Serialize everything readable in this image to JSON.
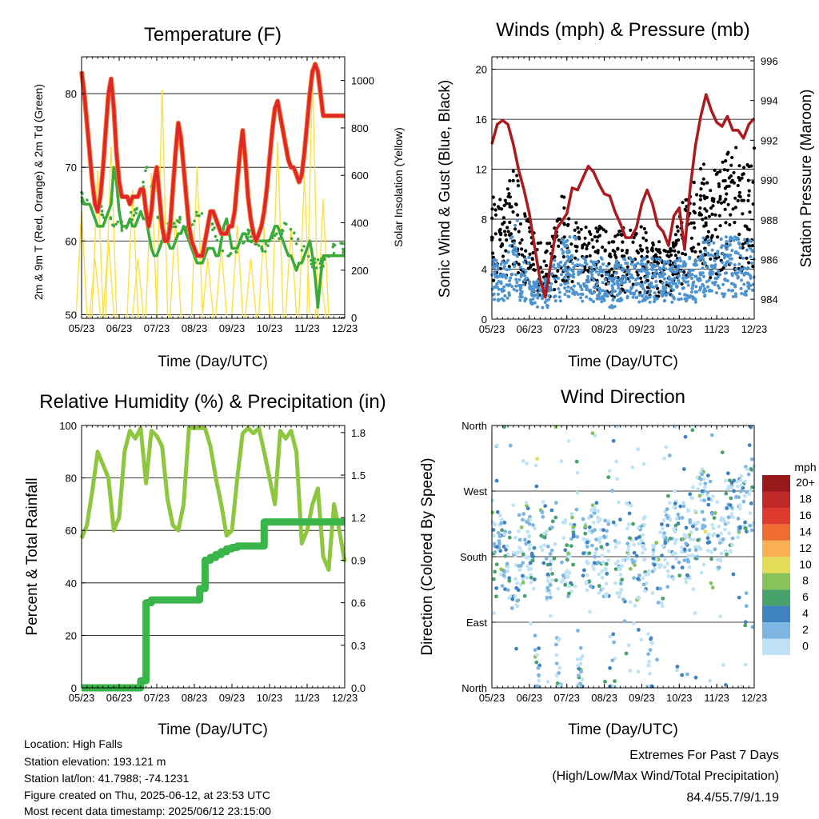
{
  "shared": {
    "xlabel": "Time (Day/UTC)",
    "xticks": [
      "05/23",
      "06/23",
      "07/23",
      "08/23",
      "09/23",
      "10/23",
      "11/23",
      "12/23"
    ]
  },
  "chart_data": [
    {
      "type": "line",
      "title": "Temperature (F)",
      "ylabel_left": "2m & 9m T (Red, Orange) & 2m Td (Green)",
      "ylabel_right": "Solar Insolation (Yellow)",
      "ylim_left": [
        49.5,
        85
      ],
      "yticks_left": [
        50,
        60,
        70,
        80
      ],
      "ylim_right": [
        -3,
        1100
      ],
      "yticks_right": [
        0,
        200,
        400,
        600,
        800,
        1000
      ],
      "x": [
        0,
        0.5,
        1,
        1.5,
        2,
        2.5,
        3,
        3.5,
        4,
        4.5,
        5,
        5.5,
        6,
        6.5,
        7,
        7.5,
        8,
        8.5,
        9,
        9.5,
        10,
        10.5,
        11,
        11.5,
        12,
        12.5,
        13,
        13.5,
        14,
        14.5,
        15,
        15.5,
        16,
        16.5,
        17,
        17.5,
        18,
        18.5,
        19,
        19.5,
        20,
        20.5,
        21,
        21.5,
        22,
        22.5,
        23,
        23.5,
        24,
        24.5,
        25,
        25.5,
        26,
        26.5,
        27,
        27.5,
        28,
        28.5,
        29,
        29.5,
        30,
        30.5,
        31,
        31.5,
        32,
        32.5,
        33,
        33.5,
        34,
        34.5,
        35,
        35.5,
        36,
        36.5,
        37,
        37.5,
        38,
        38.5,
        39,
        39.5,
        40,
        40.5,
        41,
        41.5,
        42,
        42.5,
        43,
        43.5,
        44,
        44.5,
        45,
        45.5,
        46,
        46.5,
        47,
        47.5,
        48,
        48.5,
        49
      ],
      "series": [
        {
          "color": "#e0262a",
          "values": [
            83,
            80,
            76,
            72,
            68,
            65,
            64,
            66,
            70,
            75,
            80,
            82,
            78,
            72,
            68,
            66,
            66,
            66,
            65,
            66,
            66,
            66,
            67,
            67,
            64,
            62,
            64,
            68,
            70,
            66,
            62,
            60,
            60,
            62,
            67,
            72,
            76,
            74,
            70,
            66,
            62,
            60,
            59,
            58,
            58,
            58,
            60,
            62,
            64,
            64,
            63,
            62,
            61,
            61,
            61,
            62,
            62,
            64,
            68,
            72,
            75,
            71,
            66,
            63,
            61,
            60,
            61,
            62,
            64,
            67,
            71,
            75,
            78,
            79,
            77,
            75,
            73,
            71,
            70,
            70,
            69,
            68,
            69,
            72,
            76,
            80,
            83,
            84,
            83,
            80,
            77,
            77,
            77,
            77,
            77,
            77,
            77,
            77,
            77
          ]
        },
        {
          "color": "#3aab3a",
          "values": [
            66,
            65,
            65,
            65,
            64,
            63,
            62,
            62,
            62,
            63,
            64,
            65,
            70,
            68,
            64,
            62,
            62,
            62,
            63,
            62,
            62,
            63,
            64,
            63,
            63,
            61,
            59,
            58,
            58,
            59,
            60,
            61,
            60,
            59,
            59,
            60,
            61,
            61,
            62,
            61,
            60,
            59,
            58,
            57,
            57,
            57,
            58,
            59,
            59,
            59,
            58,
            58,
            60,
            62,
            63,
            61,
            59,
            59,
            59,
            60,
            61,
            61,
            60,
            60,
            60,
            60,
            60,
            60,
            60,
            60,
            60,
            61,
            62,
            62,
            61,
            60,
            59,
            58,
            58,
            57,
            56,
            57,
            57,
            58,
            59,
            60,
            58,
            55,
            51,
            55,
            58,
            58,
            58,
            58,
            58,
            58,
            58,
            58,
            58
          ]
        },
        {
          "color": "#ffe042",
          "values": [
            450,
            0,
            0,
            0,
            0,
            250,
            620,
            0,
            0,
            0,
            330,
            720,
            0,
            0,
            0,
            0,
            0,
            0,
            0,
            540,
            0,
            250,
            0,
            0,
            0,
            0,
            610,
            0,
            0,
            0,
            960,
            0,
            0,
            0,
            0,
            420,
            0,
            0,
            0,
            0,
            0,
            0,
            0,
            640,
            0,
            0,
            0,
            250,
            0,
            0,
            0,
            0,
            300,
            0,
            0,
            0,
            0,
            0,
            390,
            0,
            0,
            0,
            0,
            250,
            0,
            0,
            0,
            0,
            380,
            0,
            0,
            0,
            0,
            740,
            0,
            0,
            0,
            0,
            380,
            0,
            0,
            0,
            0,
            600,
            0,
            0,
            1040,
            0,
            0,
            180,
            500,
            0,
            0,
            0,
            0,
            0,
            0,
            0,
            0
          ]
        }
      ]
    },
    {
      "type": "scatter",
      "title": "Winds (mph) & Pressure (mb)",
      "ylabel_left": "Sonic Wind & Gust (Blue, Black)",
      "ylabel_right": "Station Pressure (Maroon)",
      "ylim_left": [
        0,
        21
      ],
      "yticks_left": [
        0,
        4,
        8,
        12,
        16,
        20
      ],
      "ylim_right": [
        983,
        996.2
      ],
      "yticks_right": [
        984,
        986,
        988,
        990,
        992,
        994,
        996
      ],
      "pressure": {
        "color": "#aa1a1f",
        "x": [
          0,
          1,
          2,
          3,
          4,
          5,
          6,
          7,
          8,
          9,
          10,
          11,
          12,
          13,
          14,
          15,
          16,
          17,
          18,
          19,
          20,
          21,
          22,
          23,
          24,
          25,
          26,
          27,
          28,
          29,
          30,
          31,
          32,
          33,
          34,
          35,
          36,
          37,
          38,
          39,
          40,
          41,
          42,
          43,
          44,
          45,
          46,
          47,
          48,
          49
        ],
        "values": [
          991.8,
          992.8,
          993,
          992.8,
          991.8,
          990.5,
          989.5,
          988.3,
          986.6,
          985,
          984.1,
          985.8,
          987.5,
          987.9,
          988.3,
          989.6,
          989.5,
          990.1,
          990.7,
          990.4,
          989.8,
          989.3,
          989.2,
          988.4,
          987.8,
          987.1,
          987.1,
          987.6,
          988.8,
          989.5,
          988.8,
          987.7,
          987.4,
          986.7,
          988.2,
          988.6,
          986.5,
          989.5,
          991.7,
          993.2,
          994.3,
          993.5,
          992.9,
          992.7,
          993.2,
          992.5,
          992.5,
          992.1,
          992.8,
          993.1
        ]
      },
      "wind_level": [
        3,
        3,
        3,
        4,
        5,
        3,
        3,
        2,
        2,
        2,
        2,
        3,
        3,
        4,
        4,
        4,
        3,
        3,
        3,
        3,
        3,
        3,
        2,
        3,
        3,
        3,
        3,
        3,
        3,
        3,
        3,
        3,
        3,
        3,
        3,
        3,
        3,
        3,
        3,
        4,
        4,
        4,
        4,
        4,
        4,
        4,
        4,
        4,
        4,
        4
      ],
      "gust_level": [
        8,
        8,
        9,
        10,
        10,
        7,
        7,
        6,
        5,
        5,
        5,
        6,
        7,
        8,
        8,
        8,
        7,
        6,
        6,
        6,
        6,
        6,
        5,
        6,
        6,
        6,
        6,
        6,
        6,
        5,
        5,
        5,
        5,
        5,
        6,
        8,
        8,
        9,
        9,
        10,
        9,
        10,
        10,
        11,
        11,
        11,
        10,
        10,
        11,
        11
      ]
    },
    {
      "type": "line",
      "title": "Relative Humidity (%) & Precipitation (in)",
      "ylabel_left": "Percent & Total Rainfall",
      "ylim_left": [
        0,
        100
      ],
      "yticks_left": [
        0,
        20,
        40,
        60,
        80,
        100
      ],
      "ylim_right": [
        0,
        1.85
      ],
      "yticks_right": [
        "0.0",
        "0.3",
        "0.6",
        "0.9",
        "1.2",
        "1.5",
        "1.8"
      ],
      "x": [
        0,
        1,
        2,
        3,
        4,
        5,
        6,
        7,
        8,
        9,
        10,
        11,
        12,
        13,
        14,
        15,
        16,
        17,
        18,
        19,
        20,
        21,
        22,
        23,
        24,
        25,
        26,
        27,
        28,
        29,
        30,
        31,
        32,
        33,
        34,
        35,
        36,
        37,
        38,
        39,
        40,
        41,
        42,
        43,
        44,
        45,
        46,
        47,
        48,
        49
      ],
      "series": [
        {
          "name": "RH",
          "color": "#8ec63f",
          "values": [
            57,
            62,
            75,
            90,
            85,
            80,
            60,
            65,
            90,
            98,
            95,
            99,
            78,
            98,
            96,
            92,
            72,
            62,
            60,
            70,
            99,
            99,
            99,
            99,
            92,
            80,
            70,
            58,
            60,
            80,
            97,
            99,
            97,
            99,
            90,
            80,
            70,
            98,
            95,
            98,
            90,
            55,
            60,
            70,
            76,
            50,
            45,
            70,
            60,
            48
          ]
        },
        {
          "name": "Precip",
          "color": "#3ab54a",
          "values": [
            0,
            0,
            0,
            0,
            0,
            0,
            0,
            0,
            0,
            0,
            0,
            0.05,
            0.6,
            0.62,
            0.62,
            0.62,
            0.62,
            0.62,
            0.62,
            0.62,
            0.62,
            0.62,
            0.7,
            0.9,
            0.92,
            0.94,
            0.96,
            0.98,
            0.99,
            1,
            1,
            1,
            1,
            1,
            1.17,
            1.17,
            1.17,
            1.17,
            1.17,
            1.17,
            1.17,
            1.17,
            1.17,
            1.17,
            1.17,
            1.17,
            1.17,
            1.17,
            1.17,
            1.17
          ]
        }
      ]
    },
    {
      "type": "scatter",
      "title": "Wind Direction",
      "ylabel_left": "Direction (Colored By Speed)",
      "ylim_left": [
        0,
        360
      ],
      "yticks_labels": [
        "North",
        "East",
        "South",
        "West",
        "North"
      ],
      "legend_title": "mph",
      "legend_labels": [
        "20+",
        "18",
        "16",
        "14",
        "12",
        "10",
        "8",
        "6",
        "4",
        "2",
        "0"
      ],
      "legend_colors": [
        "#991819",
        "#c0292a",
        "#de3b2e",
        "#ef6c30",
        "#fbb153",
        "#e4dd57",
        "#86c45a",
        "#47a26b",
        "#3f82c1",
        "#7eb6e2",
        "#bfe3f5"
      ]
    }
  ],
  "info": {
    "location": "Location: High Falls",
    "elevation": "Station elevation: 193.121 m",
    "latlon": "Station lat/lon: 41.7988; -74.1231",
    "created": "Figure created on Thu, 2025-06-12, at 23:53 UTC",
    "timestamp": "Most recent data timestamp: 2025/06/12 23:15:00"
  },
  "extremes": {
    "title": "Extremes For Past 7 Days",
    "subtitle": "(High/Low/Max Wind/Total Precipitation)",
    "values": "84.4/55.7/9/1.19"
  }
}
